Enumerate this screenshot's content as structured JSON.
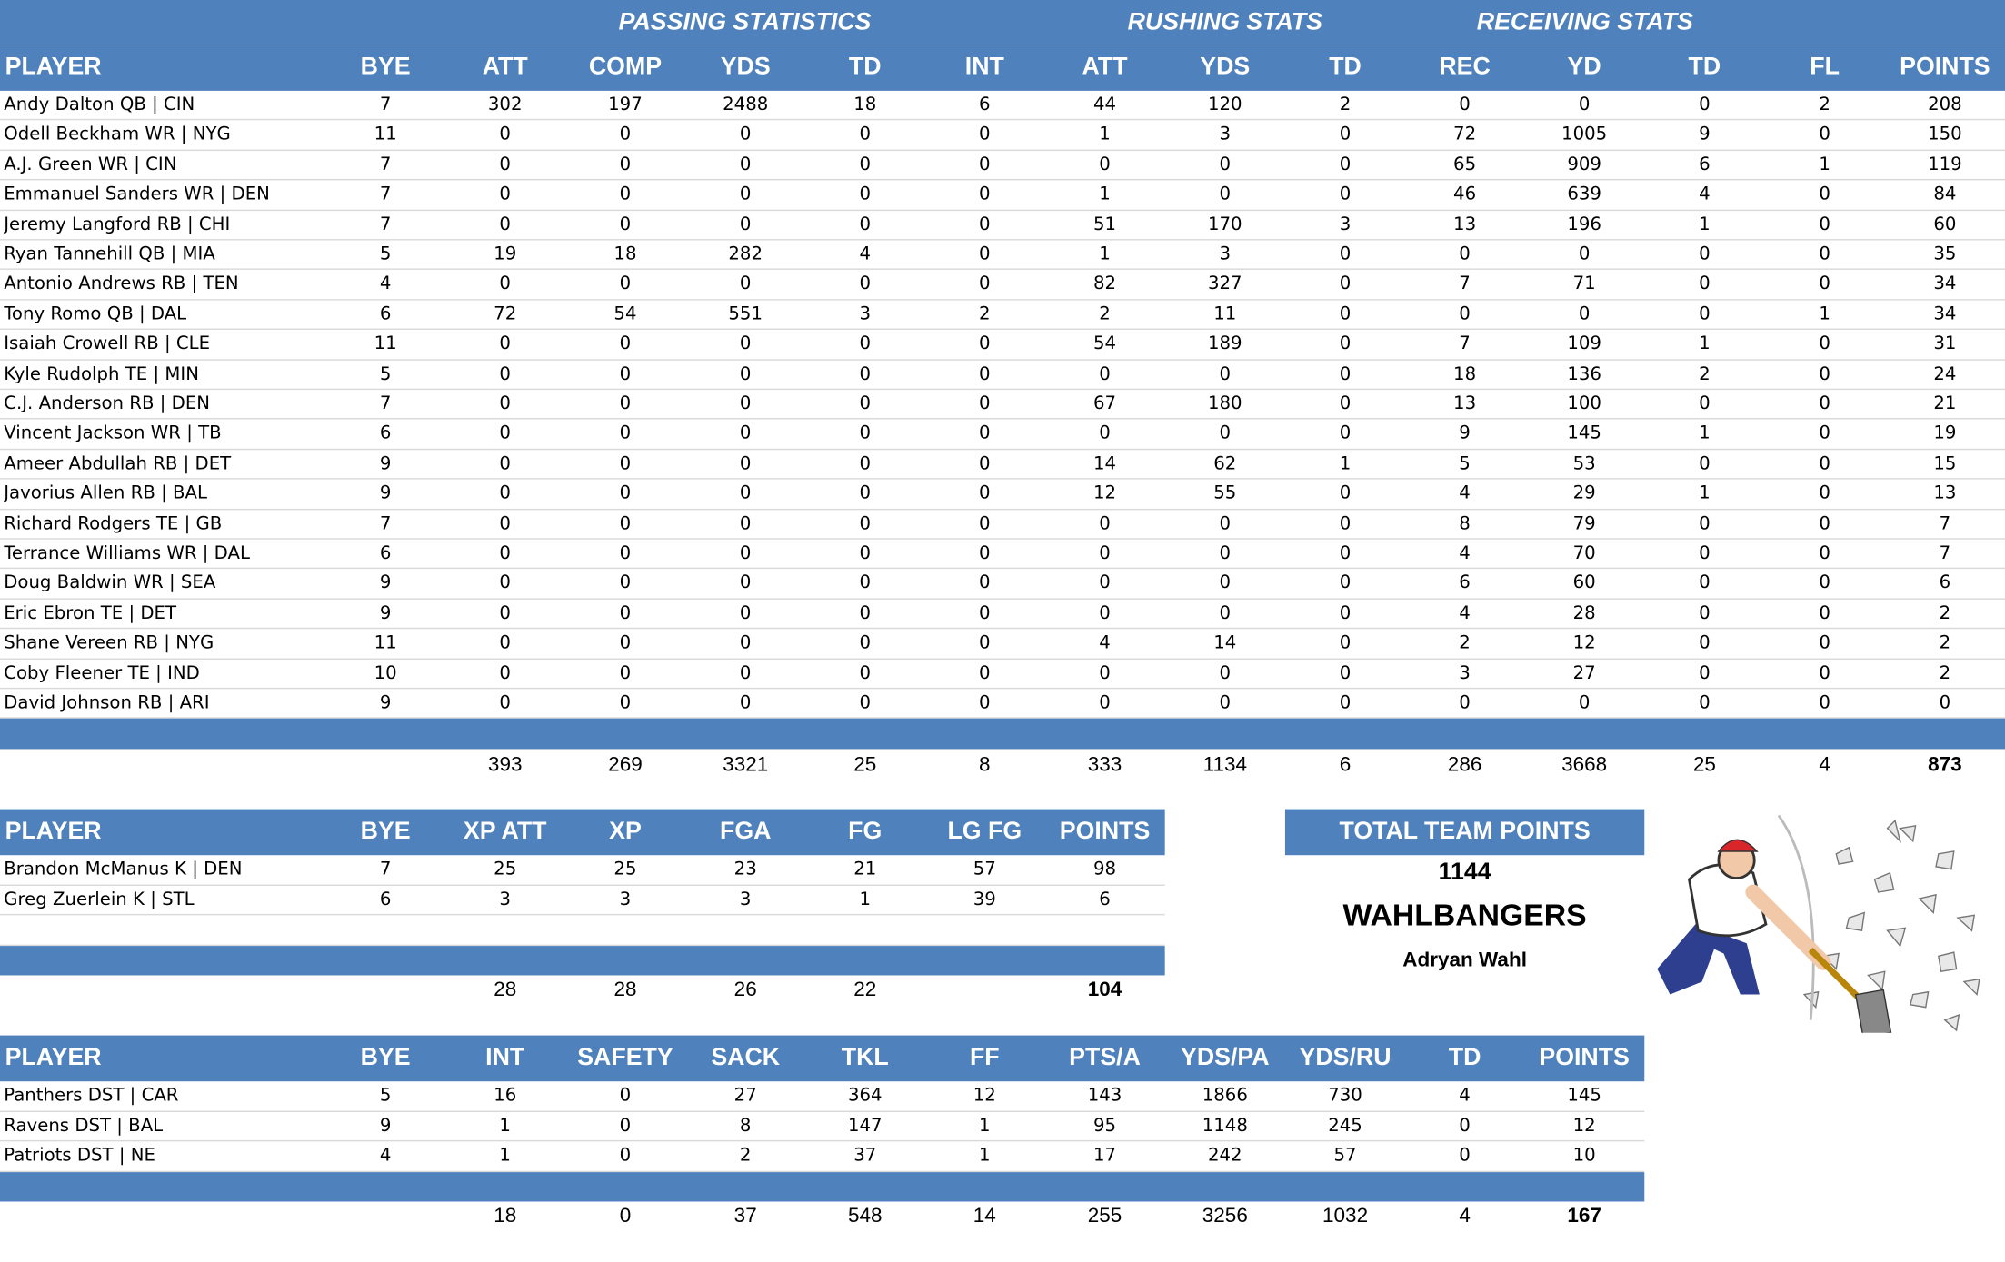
{
  "offense": {
    "group_headers": [
      "PASSING STATISTICS",
      "RUSHING STATS",
      "RECEIVING STATS"
    ],
    "headers": [
      "PLAYER",
      "BYE",
      "ATT",
      "COMP",
      "YDS",
      "TD",
      "INT",
      "ATT",
      "YDS",
      "TD",
      "REC",
      "YD",
      "TD",
      "FL",
      "POINTS"
    ],
    "rows": [
      [
        "Andy Dalton QB | CIN",
        7,
        302,
        197,
        2488,
        18,
        6,
        44,
        120,
        2,
        0,
        0,
        0,
        2,
        208
      ],
      [
        "Odell Beckham WR | NYG",
        11,
        0,
        0,
        0,
        0,
        0,
        1,
        3,
        0,
        72,
        1005,
        9,
        0,
        150
      ],
      [
        "A.J. Green WR | CIN",
        7,
        0,
        0,
        0,
        0,
        0,
        0,
        0,
        0,
        65,
        909,
        6,
        1,
        119
      ],
      [
        "Emmanuel Sanders WR | DEN",
        7,
        0,
        0,
        0,
        0,
        0,
        1,
        0,
        0,
        46,
        639,
        4,
        0,
        84
      ],
      [
        "Jeremy Langford RB | CHI",
        7,
        0,
        0,
        0,
        0,
        0,
        51,
        170,
        3,
        13,
        196,
        1,
        0,
        60
      ],
      [
        "Ryan Tannehill QB | MIA",
        5,
        19,
        18,
        282,
        4,
        0,
        1,
        3,
        0,
        0,
        0,
        0,
        0,
        35
      ],
      [
        "Antonio Andrews RB | TEN",
        4,
        0,
        0,
        0,
        0,
        0,
        82,
        327,
        0,
        7,
        71,
        0,
        0,
        34
      ],
      [
        "Tony Romo QB | DAL",
        6,
        72,
        54,
        551,
        3,
        2,
        2,
        11,
        0,
        0,
        0,
        0,
        1,
        34
      ],
      [
        "Isaiah Crowell RB | CLE",
        11,
        0,
        0,
        0,
        0,
        0,
        54,
        189,
        0,
        7,
        109,
        1,
        0,
        31
      ],
      [
        "Kyle Rudolph TE | MIN",
        5,
        0,
        0,
        0,
        0,
        0,
        0,
        0,
        0,
        18,
        136,
        2,
        0,
        24
      ],
      [
        "C.J. Anderson RB | DEN",
        7,
        0,
        0,
        0,
        0,
        0,
        67,
        180,
        0,
        13,
        100,
        0,
        0,
        21
      ],
      [
        "Vincent Jackson WR | TB",
        6,
        0,
        0,
        0,
        0,
        0,
        0,
        0,
        0,
        9,
        145,
        1,
        0,
        19
      ],
      [
        "Ameer Abdullah RB | DET",
        9,
        0,
        0,
        0,
        0,
        0,
        14,
        62,
        1,
        5,
        53,
        0,
        0,
        15
      ],
      [
        "Javorius Allen RB | BAL",
        9,
        0,
        0,
        0,
        0,
        0,
        12,
        55,
        0,
        4,
        29,
        1,
        0,
        13
      ],
      [
        "Richard Rodgers TE | GB",
        7,
        0,
        0,
        0,
        0,
        0,
        0,
        0,
        0,
        8,
        79,
        0,
        0,
        7
      ],
      [
        "Terrance Williams WR | DAL",
        6,
        0,
        0,
        0,
        0,
        0,
        0,
        0,
        0,
        4,
        70,
        0,
        0,
        7
      ],
      [
        "Doug Baldwin WR | SEA",
        9,
        0,
        0,
        0,
        0,
        0,
        0,
        0,
        0,
        6,
        60,
        0,
        0,
        6
      ],
      [
        "Eric Ebron TE | DET",
        9,
        0,
        0,
        0,
        0,
        0,
        0,
        0,
        0,
        4,
        28,
        0,
        0,
        2
      ],
      [
        "Shane Vereen RB | NYG",
        11,
        0,
        0,
        0,
        0,
        0,
        4,
        14,
        0,
        2,
        12,
        0,
        0,
        2
      ],
      [
        "Coby Fleener TE | IND",
        10,
        0,
        0,
        0,
        0,
        0,
        0,
        0,
        0,
        3,
        27,
        0,
        0,
        2
      ],
      [
        "David Johnson RB | ARI",
        9,
        0,
        0,
        0,
        0,
        0,
        0,
        0,
        0,
        0,
        0,
        0,
        0,
        0
      ]
    ],
    "totals": [
      393,
      269,
      3321,
      25,
      8,
      333,
      1134,
      6,
      286,
      3668,
      25,
      4,
      873
    ]
  },
  "kickers": {
    "headers": [
      "PLAYER",
      "BYE",
      "XP ATT",
      "XP",
      "FGA",
      "FG",
      "LG FG",
      "POINTS"
    ],
    "rows": [
      [
        "Brandon McManus K | DEN",
        7,
        25,
        25,
        23,
        21,
        57,
        98
      ],
      [
        "Greg Zuerlein K | STL",
        6,
        3,
        3,
        3,
        1,
        39,
        6
      ]
    ],
    "totals": [
      28,
      28,
      26,
      22,
      null,
      104
    ]
  },
  "team": {
    "label": "TOTAL TEAM POINTS",
    "points": 1144,
    "name": "WAHLBANGERS",
    "owner": "Adryan Wahl"
  },
  "defense": {
    "headers": [
      "PLAYER",
      "BYE",
      "INT",
      "SAFETY",
      "SACK",
      "TKL",
      "FF",
      "PTS/A",
      "YDS/PA",
      "YDS/RU",
      "TD",
      "POINTS"
    ],
    "rows": [
      [
        "Panthers DST | CAR",
        5,
        16,
        0,
        27,
        364,
        12,
        143,
        1866,
        730,
        4,
        145
      ],
      [
        "Ravens DST | BAL",
        9,
        1,
        0,
        8,
        147,
        1,
        95,
        1148,
        245,
        0,
        12
      ],
      [
        "Patriots DST | NE",
        4,
        1,
        0,
        2,
        37,
        1,
        17,
        242,
        57,
        0,
        10
      ]
    ],
    "totals": [
      18,
      0,
      37,
      548,
      14,
      255,
      3256,
      1032,
      4,
      167
    ]
  }
}
